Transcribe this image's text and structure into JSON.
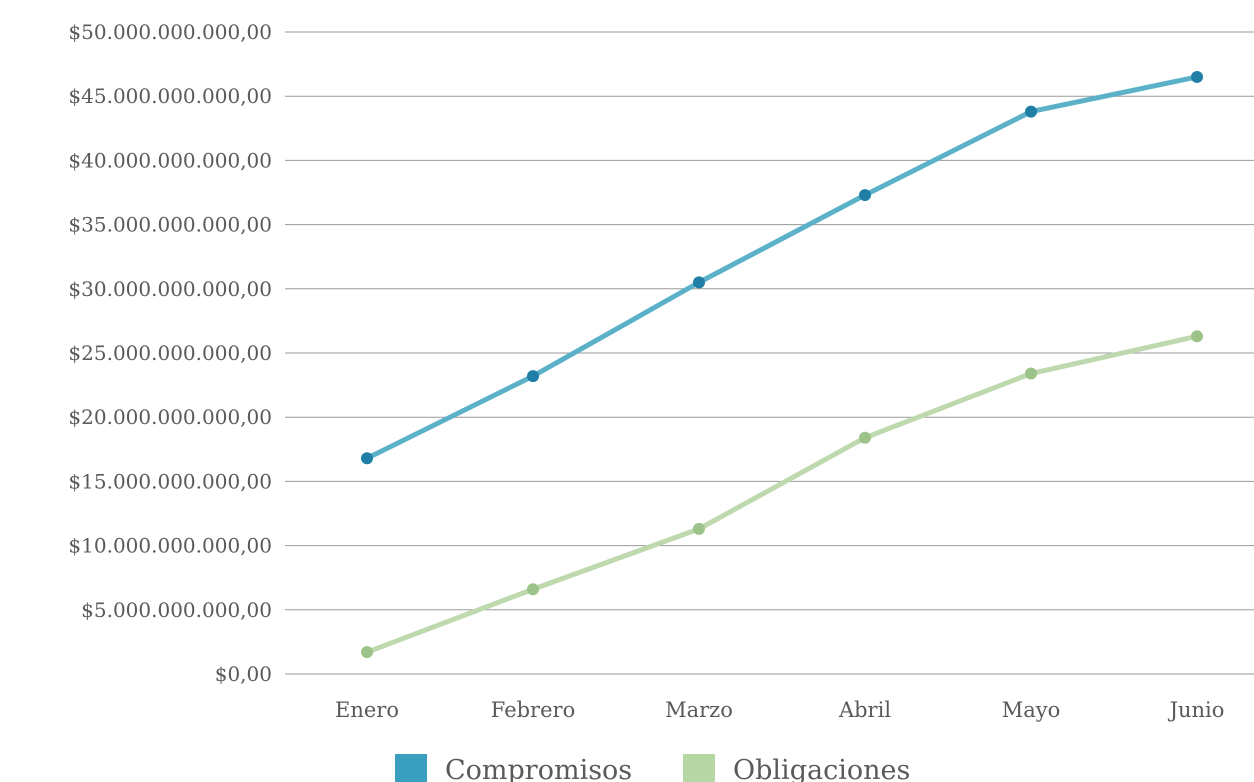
{
  "chart_data": {
    "type": "line",
    "categories": [
      "Enero",
      "Febrero",
      "Marzo",
      "Abril",
      "Mayo",
      "Junio"
    ],
    "y_ticks": [
      {
        "value": 0,
        "label": "$0,00"
      },
      {
        "value": 5000000000,
        "label": "$5.000.000.000,00"
      },
      {
        "value": 10000000000,
        "label": "$10.000.000.000,00"
      },
      {
        "value": 15000000000,
        "label": "$15.000.000.000,00"
      },
      {
        "value": 20000000000,
        "label": "$20.000.000.000,00"
      },
      {
        "value": 25000000000,
        "label": "$25.000.000.000,00"
      },
      {
        "value": 30000000000,
        "label": "$30.000.000.000,00"
      },
      {
        "value": 35000000000,
        "label": "$35.000.000.000,00"
      },
      {
        "value": 40000000000,
        "label": "$40.000.000.000,00"
      },
      {
        "value": 45000000000,
        "label": "$45.000.000.000,00"
      },
      {
        "value": 50000000000,
        "label": "$50.000.000.000,00"
      }
    ],
    "ylim": [
      0,
      50000000000
    ],
    "grid": true,
    "legend_position": "bottom",
    "series": [
      {
        "name": "Compromisos",
        "color": "#5ab1c8",
        "marker_color": "#1f7fa6",
        "legend_color": "#3a9fbf",
        "values": [
          16800000000,
          23200000000,
          30500000000,
          37300000000,
          43800000000,
          46500000000
        ]
      },
      {
        "name": "Obligaciones",
        "color": "#bfd9ae",
        "marker_color": "#9cc48a",
        "legend_color": "#b6d6a4",
        "values": [
          1700000000,
          6600000000,
          11300000000,
          18400000000,
          23400000000,
          26300000000
        ]
      }
    ]
  }
}
